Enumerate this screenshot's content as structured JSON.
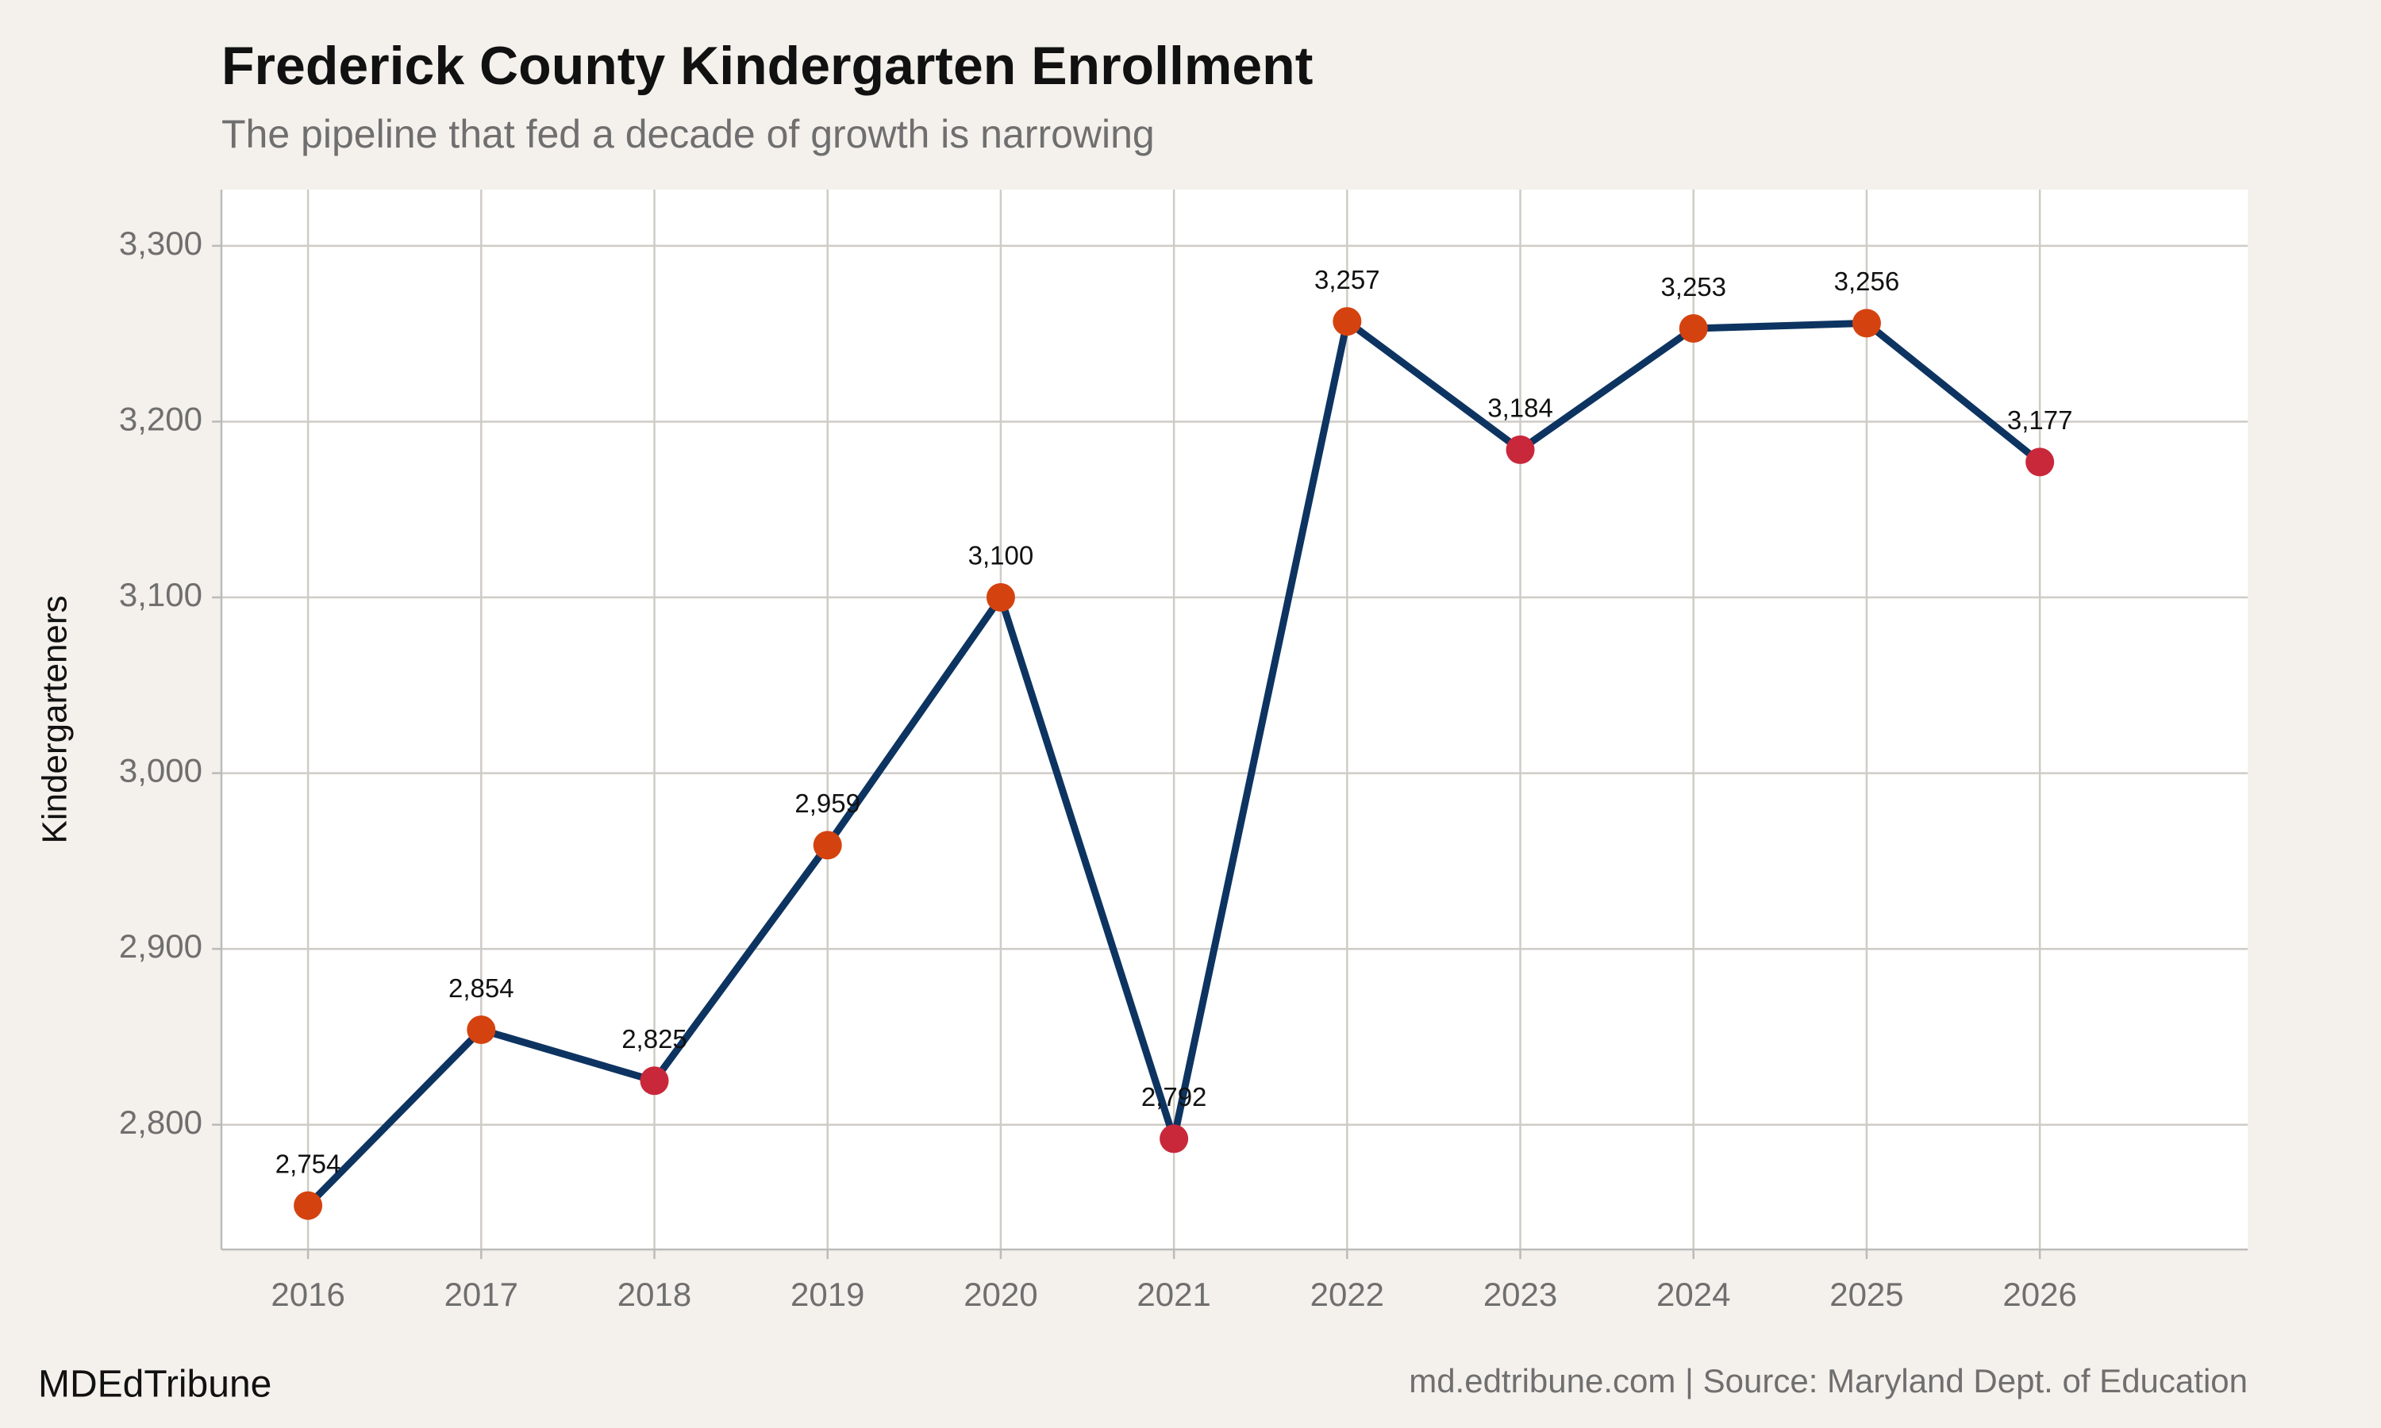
{
  "chart_data": {
    "type": "line",
    "title": "Frederick County Kindergarten Enrollment",
    "subtitle": "The pipeline that fed a decade of growth is narrowing",
    "ylabel": "Kindergarteners",
    "brand": "MDEdTribune",
    "source": "md.edtribune.com | Source: Maryland Dept. of Education",
    "x": [
      2016,
      2017,
      2018,
      2019,
      2020,
      2021,
      2022,
      2023,
      2024,
      2025,
      2026
    ],
    "series": [
      {
        "color": "#0d3461",
        "values": [
          2754,
          2854,
          2825,
          2959,
          3100,
          2792,
          3257,
          3184,
          3253,
          3256,
          3177
        ],
        "value_labels": [
          "2,754",
          "2,854",
          "2,825",
          "2,959",
          "3,100",
          "2,792",
          "3,257",
          "3,184",
          "3,253",
          "3,256",
          "3,177"
        ],
        "marker_colors": [
          "#d4430f",
          "#d4430f",
          "#c8283a",
          "#d4430f",
          "#d4430f",
          "#c8283a",
          "#d4430f",
          "#c8283a",
          "#d4430f",
          "#d4430f",
          "#c8283a"
        ]
      }
    ],
    "xlim": [
      2015.5,
      2027.2
    ],
    "xticks": [
      2016,
      2017,
      2018,
      2019,
      2020,
      2021,
      2022,
      2023,
      2024,
      2025,
      2026
    ],
    "ylim": [
      2729,
      3332
    ],
    "yticks": [
      {
        "value": 2800,
        "label": "2,800"
      },
      {
        "value": 2900,
        "label": "2,900"
      },
      {
        "value": 3000,
        "label": "3,000"
      },
      {
        "value": 3100,
        "label": "3,100"
      },
      {
        "value": 3200,
        "label": "3,200"
      },
      {
        "value": 3300,
        "label": "3,300"
      }
    ],
    "grid": true
  }
}
